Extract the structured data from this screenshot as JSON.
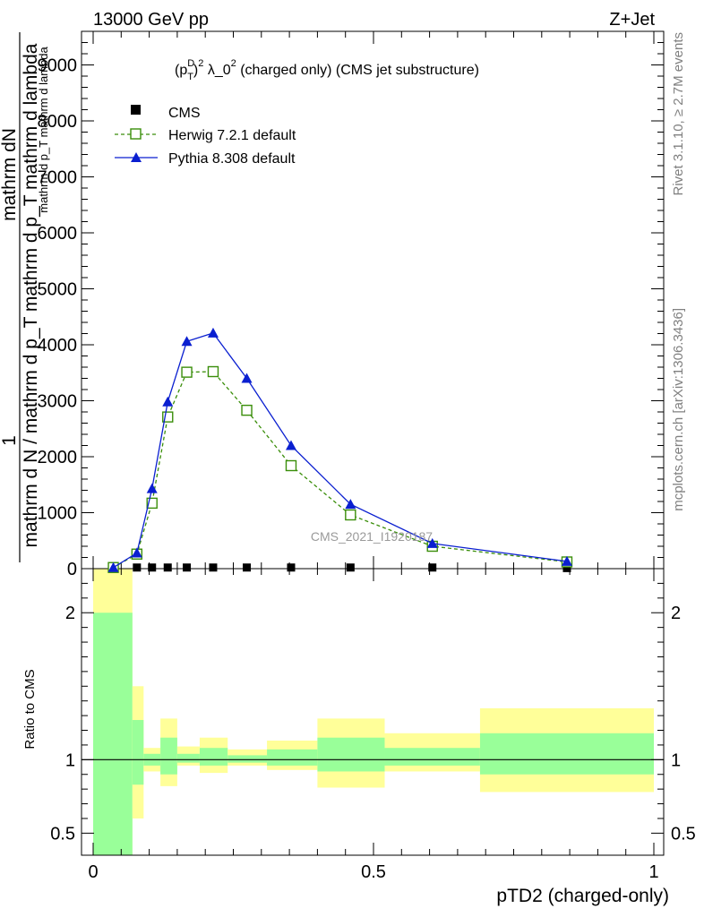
{
  "header": {
    "left": "13000 GeV pp",
    "right": "Z+Jet"
  },
  "side_labels": {
    "rivet": "Rivet 3.1.10, ≥ 2.7M events",
    "mcplots": "mcplots.cern.ch [arXiv:1306.3436]"
  },
  "chart_data": [
    {
      "type": "line",
      "title": "(p_T^D)^2 λ_0^2 (charged only) (CMS jet substructure)",
      "title_parts": {
        "p": "(p",
        "sup_d": "D",
        "sub_t": "T",
        "close": ")",
        "sup_2": "2",
        "mid": " λ_0",
        "sup_2b": "2",
        "rest": " (charged only) (CMS jet substructure)"
      },
      "ylabel": {
        "numerator_1": "1",
        "numerator_2": "mathrm dN",
        "denominator_1": "mathrm d N / mathrm d p_T mathrm d p_T mathrm d lambda",
        "denominator_2": "mathrm d p_T mathrm d lambda"
      },
      "xlim": [
        0,
        1
      ],
      "ylim": [
        0,
        9600
      ],
      "yticks": [
        0,
        1000,
        2000,
        3000,
        4000,
        5000,
        6000,
        7000,
        8000,
        9000
      ],
      "ytick_labels": [
        "0",
        "1000",
        "2000",
        "3000",
        "4000",
        "5000",
        "6000",
        "7000",
        "8000",
        "9000"
      ],
      "watermark": "CMS_2021_I1920187",
      "legend_position": "top-left",
      "legend": [
        {
          "name": "CMS",
          "marker": "filled-square",
          "color": "#000000"
        },
        {
          "name": "Herwig 7.2.1 default",
          "marker": "open-square",
          "color": "#3a8e0a",
          "dash": "dashed"
        },
        {
          "name": "Pythia 8.308 default",
          "marker": "filled-triangle",
          "color": "#0a1fd0",
          "dash": "solid"
        }
      ],
      "series": [
        {
          "name": "CMS",
          "x": [
            0.036,
            0.078,
            0.105,
            0.133,
            0.167,
            0.214,
            0.274,
            0.353,
            0.459,
            0.605,
            0.845
          ],
          "y": [
            10,
            20,
            20,
            20,
            20,
            20,
            20,
            20,
            20,
            20,
            10
          ]
        },
        {
          "name": "Herwig 7.2.1 default",
          "x": [
            0.036,
            0.078,
            0.105,
            0.133,
            0.167,
            0.214,
            0.274,
            0.353,
            0.459,
            0.605,
            0.845
          ],
          "y": [
            20,
            260,
            1170,
            2710,
            3510,
            3520,
            2830,
            1840,
            960,
            400,
            120
          ]
        },
        {
          "name": "Pythia 8.308 default",
          "x": [
            0.036,
            0.078,
            0.105,
            0.133,
            0.167,
            0.214,
            0.274,
            0.353,
            0.459,
            0.605,
            0.845
          ],
          "y": [
            20,
            280,
            1430,
            2980,
            4060,
            4210,
            3400,
            2200,
            1150,
            450,
            130
          ]
        }
      ]
    },
    {
      "type": "area",
      "ylabel": "Ratio to CMS",
      "xlabel": "pTD2 (charged-only)",
      "xlim": [
        0,
        1
      ],
      "ylim": [
        0.35,
        2.3
      ],
      "xticks": [
        0,
        0.5,
        1
      ],
      "xtick_labels": [
        "0",
        "0.5",
        "1"
      ],
      "yticks": [
        0.5,
        1,
        2
      ],
      "ytick_labels": [
        "0.5",
        "1",
        "2"
      ],
      "bands": {
        "bin_edges": [
          0,
          0.07,
          0.09,
          0.12,
          0.15,
          0.19,
          0.24,
          0.31,
          0.4,
          0.52,
          0.69,
          1.0
        ],
        "outer_low": [
          0.35,
          0.6,
          0.92,
          0.82,
          0.96,
          0.91,
          0.96,
          0.93,
          0.81,
          0.92,
          0.78
        ],
        "outer_high": [
          2.3,
          1.5,
          1.08,
          1.28,
          1.09,
          1.15,
          1.07,
          1.13,
          1.28,
          1.18,
          1.35
        ],
        "inner_low": [
          0.35,
          0.83,
          0.96,
          0.9,
          0.98,
          0.96,
          0.98,
          0.96,
          0.92,
          0.96,
          0.9
        ],
        "inner_high": [
          2.0,
          1.27,
          1.04,
          1.15,
          1.04,
          1.08,
          1.03,
          1.07,
          1.15,
          1.08,
          1.18
        ],
        "outer_color": "#ffff99",
        "inner_color": "#99ff99"
      }
    }
  ]
}
